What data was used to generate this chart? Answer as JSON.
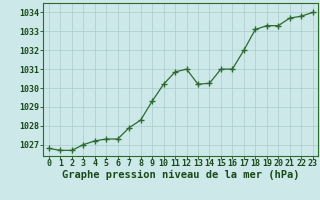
{
  "x": [
    0,
    1,
    2,
    3,
    4,
    5,
    6,
    7,
    8,
    9,
    10,
    11,
    12,
    13,
    14,
    15,
    16,
    17,
    18,
    19,
    20,
    21,
    22,
    23
  ],
  "y": [
    1026.8,
    1026.7,
    1026.7,
    1027.0,
    1027.2,
    1027.3,
    1027.3,
    1027.9,
    1028.3,
    1029.3,
    1030.2,
    1030.85,
    1031.0,
    1030.2,
    1030.25,
    1031.0,
    1031.0,
    1032.0,
    1033.1,
    1033.3,
    1033.3,
    1033.7,
    1033.8,
    1034.0
  ],
  "xlim": [
    -0.5,
    23.5
  ],
  "ylim": [
    1026.4,
    1034.5
  ],
  "yticks": [
    1027,
    1028,
    1029,
    1030,
    1031,
    1032,
    1033,
    1034
  ],
  "xticks": [
    0,
    1,
    2,
    3,
    4,
    5,
    6,
    7,
    8,
    9,
    10,
    11,
    12,
    13,
    14,
    15,
    16,
    17,
    18,
    19,
    20,
    21,
    22,
    23
  ],
  "xlabel": "Graphe pression niveau de la mer (hPa)",
  "line_color": "#2d6a2d",
  "marker_color": "#2d6a2d",
  "bg_color": "#cce8e8",
  "grid_color": "#aacccc",
  "axis_color": "#2d6a2d",
  "text_color": "#1a4a1a",
  "xlabel_fontsize": 7.5,
  "tick_fontsize": 6.0,
  "fig_width": 3.2,
  "fig_height": 2.0,
  "dpi": 100
}
